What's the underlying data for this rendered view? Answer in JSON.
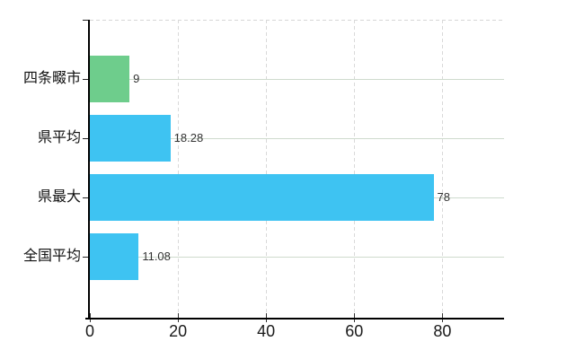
{
  "chart_data": {
    "type": "bar",
    "orientation": "horizontal",
    "categories": [
      "四条畷市",
      "県平均",
      "県最大",
      "全国平均"
    ],
    "values": [
      9,
      18.28,
      78,
      11.08
    ],
    "value_labels": [
      "9",
      "18.28",
      "78",
      "11.08"
    ],
    "bar_colors": [
      "#6ecd8c",
      "#3ec3f2",
      "#3ec3f2",
      "#3ec3f2"
    ],
    "xlim": [
      0,
      94
    ],
    "x_ticks": [
      0,
      20,
      40,
      60,
      80
    ],
    "x_tick_labels": [
      "0",
      "20",
      "40",
      "60",
      "80"
    ],
    "grid": true,
    "legend_position": "none"
  },
  "style": {
    "highlight_bar_color": "#6ecd8c",
    "default_bar_color": "#3ec3f2",
    "vertical_gridline_color": "#d9d9d9",
    "row_line_color": "#cedacd",
    "axis_color": "#000000",
    "value_text_color": "#333333",
    "tick_text_color": "#1a1a1a"
  }
}
